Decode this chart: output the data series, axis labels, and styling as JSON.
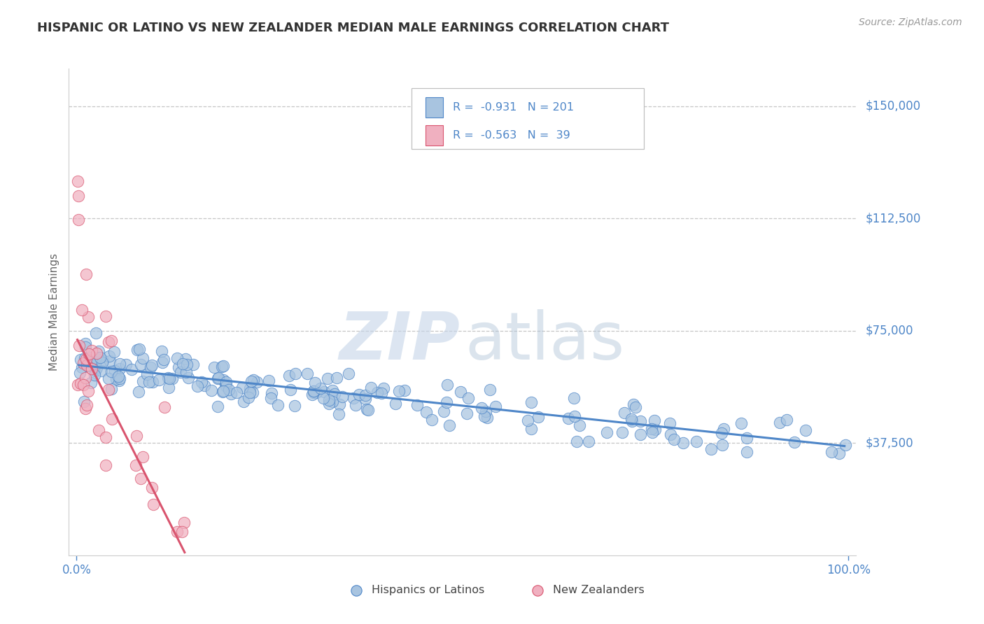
{
  "title": "HISPANIC OR LATINO VS NEW ZEALANDER MEDIAN MALE EARNINGS CORRELATION CHART",
  "source_text": "Source: ZipAtlas.com",
  "ylabel": "Median Male Earnings",
  "watermark_bold": "ZIP",
  "watermark_light": "atlas",
  "ytick_vals": [
    37500,
    75000,
    112500,
    150000
  ],
  "ytick_labels": [
    "$37,500",
    "$75,000",
    "$112,500",
    "$150,000"
  ],
  "xlim": [
    -1,
    101
  ],
  "ylim": [
    0,
    162500
  ],
  "blue_color": "#4e86c8",
  "pink_color": "#d9546e",
  "blue_fill": "#a8c4e0",
  "pink_fill": "#f0b0c0",
  "title_color": "#333333",
  "axis_color": "#4e86c8",
  "grid_color": "#b8b8b8",
  "background_color": "#ffffff",
  "blue_N": 201,
  "pink_N": 39,
  "blue_trend_x": [
    0.3,
    99.5
  ],
  "blue_trend_y": [
    63500,
    36500
  ],
  "pink_trend_x": [
    0.1,
    14.0
  ],
  "pink_trend_y": [
    72000,
    1000
  ],
  "legend_line1": "R =  -0.931   N = 201",
  "legend_line2": "R =  -0.563   N =  39",
  "bottom_blue_label": "Hispanics or Latinos",
  "bottom_pink_label": "New Zealanders"
}
